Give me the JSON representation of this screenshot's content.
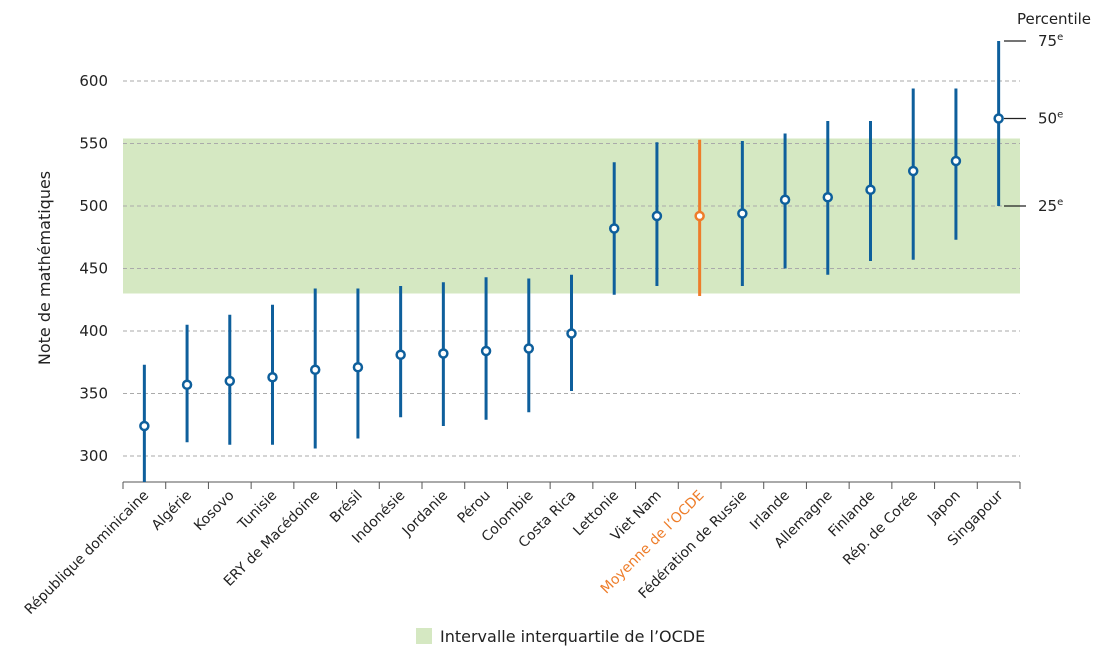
{
  "chart_data": {
    "type": "scatter",
    "ylabel": "Note de mathématiques",
    "ylim": [
      280,
      640
    ],
    "yticks": [
      300,
      350,
      400,
      450,
      500,
      550,
      600
    ],
    "grid": true,
    "band": {
      "label": "Intervalle interquartile de l’OCDE",
      "low": 430,
      "high": 554,
      "color": "#d5e8c2"
    },
    "highlight_category": "Moyenne de l’OCDE",
    "colors": {
      "main": "#0e5f9c",
      "highlight": "#ee7d2a",
      "grid": "#aaaaaa"
    },
    "percentile_legend": {
      "title": "Percentile",
      "labels": [
        {
          "base": "75",
          "sup": "e"
        },
        {
          "base": "50",
          "sup": "e"
        },
        {
          "base": "25",
          "sup": "e"
        }
      ]
    },
    "categories": [
      "République dominicaine",
      "Algérie",
      "Kosovo",
      "Tunisie",
      "ERY de Macédoine",
      "Brésil",
      "Indonésie",
      "Jordanie",
      "Pérou",
      "Colombie",
      "Costa Rica",
      "Lettonie",
      "Viet Nam",
      "Moyenne de l’OCDE",
      "Fédération de Russie",
      "Irlande",
      "Allemagne",
      "Finlande",
      "Rép. de Corée",
      "Japon",
      "Singapour"
    ],
    "series": [
      {
        "name": "25e",
        "values": [
          275,
          311,
          309,
          309,
          306,
          314,
          331,
          324,
          329,
          335,
          352,
          429,
          436,
          428,
          436,
          450,
          445,
          456,
          457,
          473,
          500
        ]
      },
      {
        "name": "50e",
        "values": [
          324,
          357,
          360,
          363,
          369,
          371,
          381,
          382,
          384,
          386,
          398,
          482,
          492,
          492,
          494,
          505,
          507,
          513,
          528,
          536,
          570
        ]
      },
      {
        "name": "75e",
        "values": [
          373,
          405,
          413,
          421,
          434,
          434,
          436,
          439,
          443,
          442,
          445,
          535,
          551,
          553,
          552,
          558,
          568,
          568,
          594,
          594,
          632
        ]
      }
    ]
  }
}
